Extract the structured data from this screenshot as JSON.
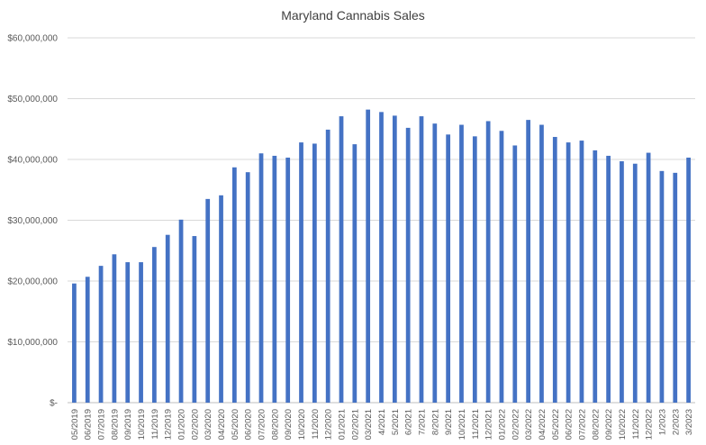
{
  "chart_data": {
    "type": "bar",
    "title": "Maryland Cannabis Sales",
    "xlabel": "",
    "ylabel": "",
    "ylim": [
      0,
      60000000
    ],
    "yticks": [
      {
        "value": 0,
        "label": "$-"
      },
      {
        "value": 10000000,
        "label": "$10,000,000"
      },
      {
        "value": 20000000,
        "label": "$20,000,000"
      },
      {
        "value": 30000000,
        "label": "$30,000,000"
      },
      {
        "value": 40000000,
        "label": "$40,000,000"
      },
      {
        "value": 50000000,
        "label": "$50,000,000"
      },
      {
        "value": 60000000,
        "label": "$60,000,000"
      }
    ],
    "grid": true,
    "legend": "none",
    "bar_color": "#4472C4",
    "categories": [
      "05/2019",
      "06/2019",
      "07/2019",
      "08/2019",
      "09/2019",
      "10/2019",
      "11/2019",
      "12/2019",
      "01/2020",
      "02/2020",
      "03/2020",
      "04/2020",
      "05/2020",
      "06/2020",
      "07/2020",
      "08/2020",
      "09/2020",
      "10/2020",
      "11/2020",
      "12/2020",
      "01/2021",
      "02/2021",
      "03/2021",
      "4/2021",
      "5/2021",
      "6/2021",
      "7/2021",
      "8/2021",
      "9/2021",
      "10/2021",
      "11/2021",
      "12/2021",
      "01/2022",
      "02/2022",
      "03/2022",
      "04/2022",
      "05/2022",
      "06/2022",
      "07/2022",
      "08/2022",
      "09/2022",
      "10/2022",
      "11/2022",
      "12/2022",
      "1/2023",
      "2/2023",
      "3/2023"
    ],
    "values": [
      19600000,
      20700000,
      22500000,
      24400000,
      23100000,
      23100000,
      25600000,
      27600000,
      30100000,
      27400000,
      33500000,
      34100000,
      38700000,
      37900000,
      41000000,
      40600000,
      40300000,
      42800000,
      42600000,
      44900000,
      47100000,
      42500000,
      48200000,
      47800000,
      47200000,
      45200000,
      47100000,
      45900000,
      44100000,
      45700000,
      43800000,
      46300000,
      44700000,
      42300000,
      46500000,
      45700000,
      43700000,
      42800000,
      43100000,
      41500000,
      40600000,
      39700000,
      39300000,
      41100000,
      38100000,
      37800000,
      40300000
    ]
  }
}
